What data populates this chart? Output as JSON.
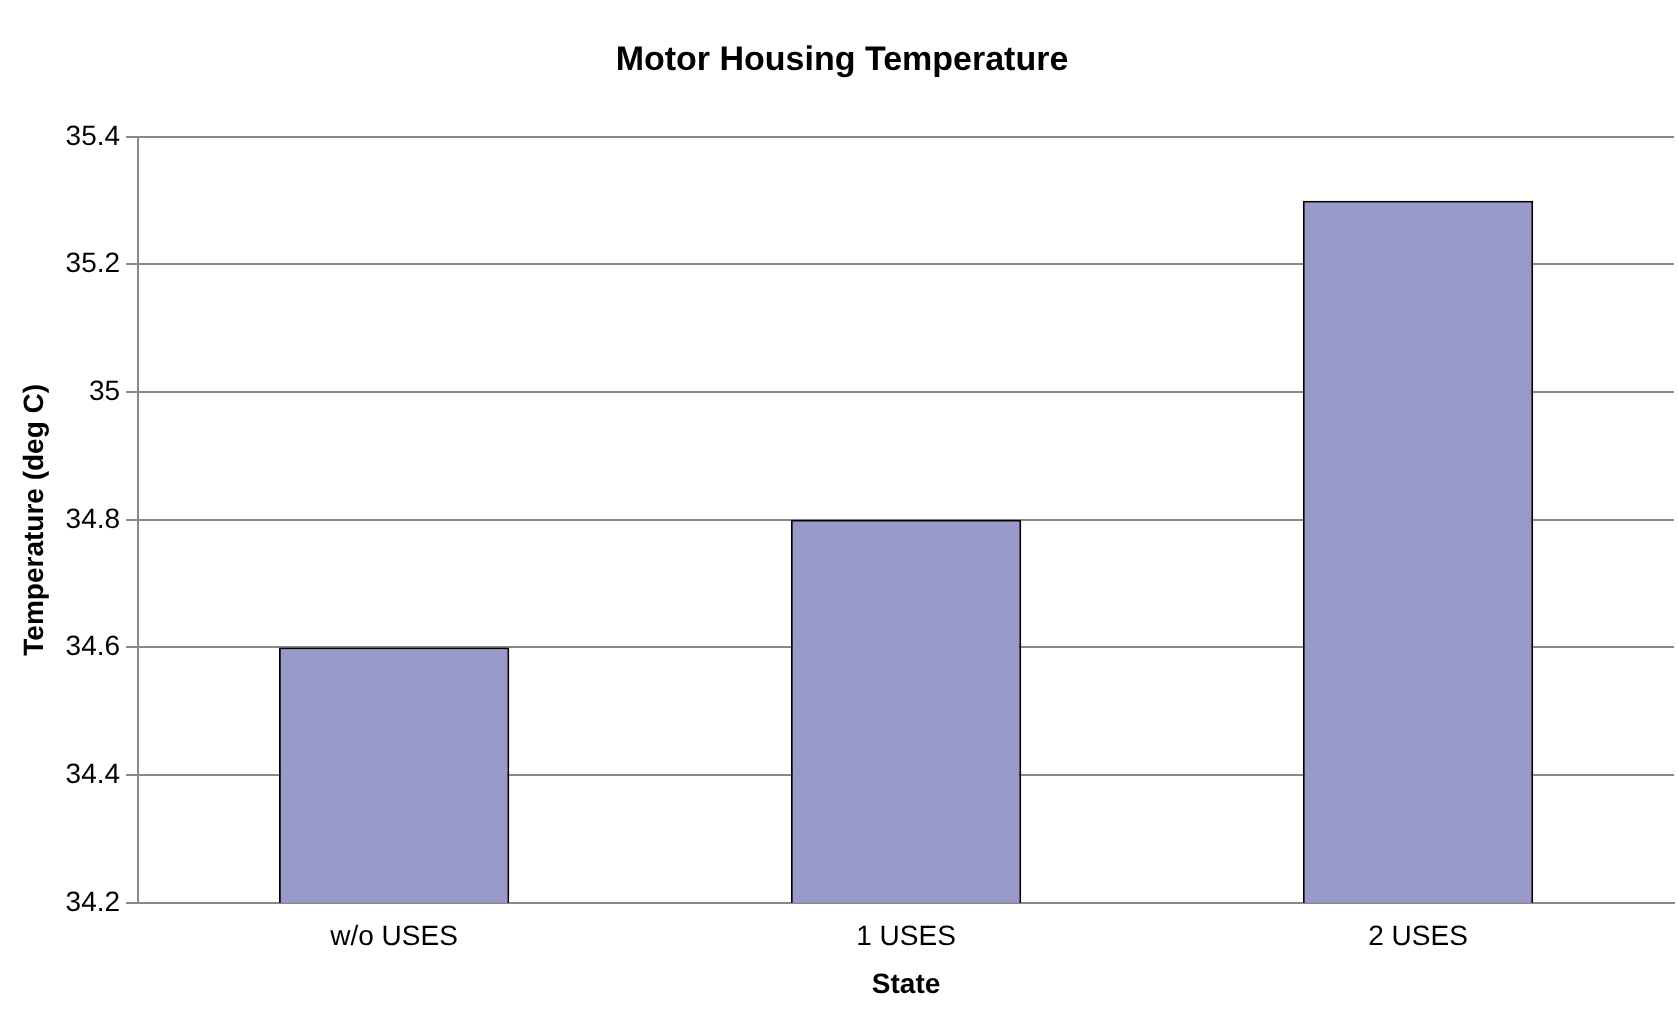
{
  "chart_data": {
    "type": "bar",
    "title": "Motor Housing Temperature",
    "xlabel": "State",
    "ylabel": "Temperature (deg C)",
    "categories": [
      "w/o USES",
      "1 USES",
      "2 USES"
    ],
    "values": [
      34.6,
      34.8,
      35.3
    ],
    "color": "#9999cc",
    "ylim": [
      34.2,
      35.4
    ],
    "yticks": [
      34.2,
      34.4,
      34.6,
      34.8,
      35,
      35.2,
      35.4
    ],
    "grid": "y",
    "legend": false
  }
}
